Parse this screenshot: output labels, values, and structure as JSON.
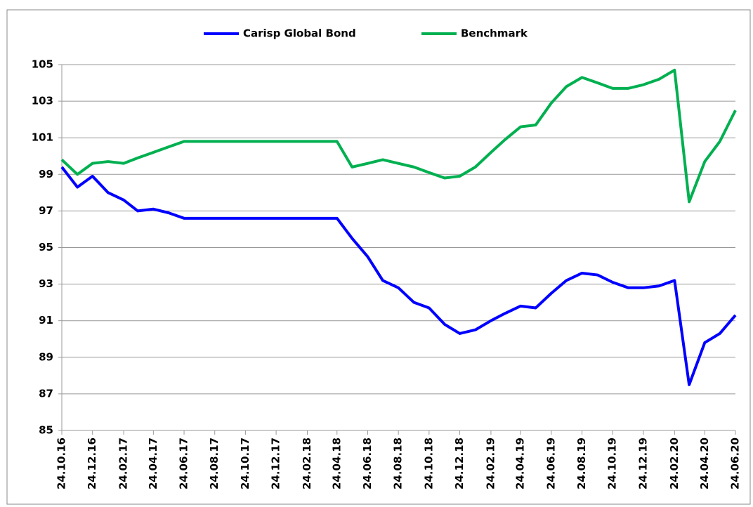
{
  "chart_data": {
    "type": "line",
    "x": [
      "24.10.16",
      "24.11.16",
      "24.12.16",
      "24.01.17",
      "24.02.17",
      "24.03.17",
      "24.04.17",
      "24.05.17",
      "24.06.17",
      "24.07.17",
      "24.08.17",
      "24.09.17",
      "24.10.17",
      "24.11.17",
      "24.12.17",
      "24.01.18",
      "24.02.18",
      "24.03.18",
      "24.04.18",
      "24.05.18",
      "24.06.18",
      "24.07.18",
      "24.08.18",
      "24.09.18",
      "24.10.18",
      "24.11.18",
      "24.12.18",
      "24.01.19",
      "24.02.19",
      "24.03.19",
      "24.04.19",
      "24.05.19",
      "24.06.19",
      "24.07.19",
      "24.08.19",
      "24.09.19",
      "24.10.19",
      "24.11.19",
      "24.12.19",
      "24.01.20",
      "24.02.20",
      "24.03.20",
      "24.04.20",
      "24.05.20",
      "24.06.20"
    ],
    "series": [
      {
        "name": "Carisp Global Bond",
        "color": "#0000ff",
        "values": [
          99.4,
          98.3,
          98.9,
          98.0,
          97.6,
          97.0,
          97.1,
          96.9,
          96.6,
          96.6,
          96.6,
          96.6,
          96.6,
          96.6,
          96.6,
          96.6,
          96.6,
          96.6,
          96.6,
          95.5,
          94.5,
          93.2,
          92.8,
          92.0,
          91.7,
          90.8,
          90.3,
          90.5,
          91.0,
          91.4,
          91.8,
          91.7,
          92.5,
          93.2,
          93.6,
          93.5,
          93.1,
          92.8,
          92.8,
          92.9,
          93.2,
          87.5,
          89.8,
          90.3,
          91.3
        ]
      },
      {
        "name": "Benchmark",
        "color": "#00b050",
        "values": [
          99.8,
          99.0,
          99.6,
          99.7,
          99.6,
          99.9,
          100.2,
          100.5,
          100.8,
          100.8,
          100.8,
          100.8,
          100.8,
          100.8,
          100.8,
          100.8,
          100.8,
          100.8,
          100.8,
          99.4,
          99.6,
          99.8,
          99.6,
          99.4,
          99.1,
          98.8,
          98.9,
          99.4,
          100.2,
          100.9,
          101.6,
          101.7,
          102.9,
          103.8,
          104.3,
          104.0,
          103.7,
          103.7,
          103.9,
          104.2,
          104.7,
          97.5,
          99.7,
          100.8,
          102.5
        ]
      }
    ],
    "xlim": [
      "24.10.16",
      "24.06.20"
    ],
    "xticks": [
      "24.10.16",
      "24.12.16",
      "24.02.17",
      "24.04.17",
      "24.06.17",
      "24.08.17",
      "24.10.17",
      "24.12.17",
      "24.02.18",
      "24.04.18",
      "24.06.18",
      "24.08.18",
      "24.10.18",
      "24.12.18",
      "24.02.19",
      "24.04.19",
      "24.06.19",
      "24.08.19",
      "24.10.19",
      "24.12.19",
      "24.02.20",
      "24.04.20",
      "24.06.20"
    ],
    "ylim": [
      85,
      105
    ],
    "yticks": [
      85,
      87,
      89,
      91,
      93,
      95,
      97,
      99,
      101,
      103,
      105
    ],
    "grid": true,
    "legend": "top"
  }
}
